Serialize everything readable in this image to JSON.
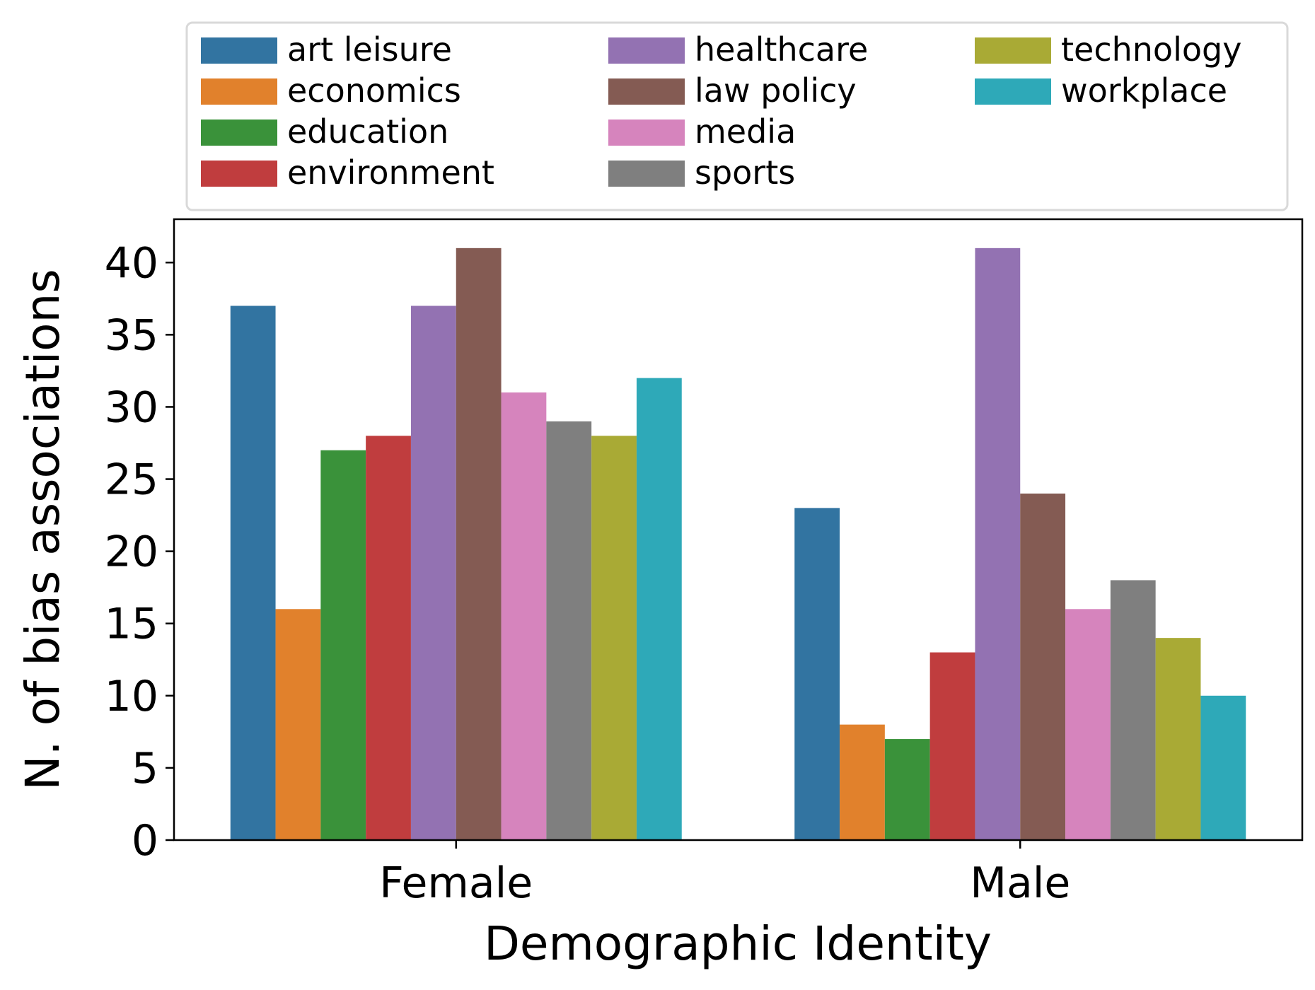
{
  "chart_data": {
    "type": "bar",
    "title": "",
    "xlabel": "Demographic Identity",
    "ylabel": "N. of bias associations",
    "ylim": [
      0,
      43
    ],
    "yticks": [
      0,
      5,
      10,
      15,
      20,
      25,
      30,
      35,
      40
    ],
    "grid": false,
    "legend_position": "top",
    "categories": [
      "Female",
      "Male"
    ],
    "series": [
      {
        "name": "art leisure",
        "color": "#3274a1",
        "values": [
          37,
          23
        ]
      },
      {
        "name": "economics",
        "color": "#e1812c",
        "values": [
          16,
          8
        ]
      },
      {
        "name": "education",
        "color": "#3a923a",
        "values": [
          27,
          7
        ]
      },
      {
        "name": "environment",
        "color": "#c03d3e",
        "values": [
          28,
          13
        ]
      },
      {
        "name": "healthcare",
        "color": "#9372b2",
        "values": [
          37,
          41
        ]
      },
      {
        "name": "law policy",
        "color": "#845b53",
        "values": [
          41,
          24
        ]
      },
      {
        "name": "media",
        "color": "#d684bd",
        "values": [
          31,
          16
        ]
      },
      {
        "name": "sports",
        "color": "#7f7f7f",
        "values": [
          29,
          18
        ]
      },
      {
        "name": "technology",
        "color": "#a9aa35",
        "values": [
          28,
          14
        ]
      },
      {
        "name": "workplace",
        "color": "#2ea9b8",
        "values": [
          32,
          10
        ]
      }
    ]
  }
}
